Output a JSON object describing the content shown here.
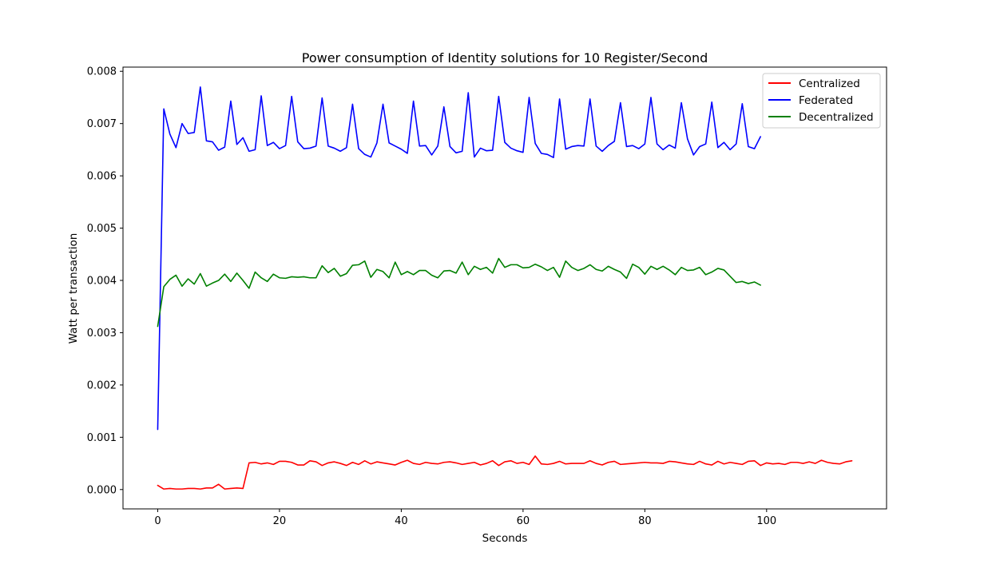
{
  "chart_data": {
    "type": "line",
    "title": "Power consumption of Identity solutions for 10 Register/Second",
    "xlabel": "Seconds",
    "ylabel": "Watt per transaction",
    "xlim": [
      -5.7,
      119.7
    ],
    "ylim": [
      -0.00037,
      0.00808
    ],
    "xticks": [
      0,
      20,
      40,
      60,
      80,
      100
    ],
    "xtick_labels": [
      "0",
      "20",
      "40",
      "60",
      "80",
      "100"
    ],
    "yticks": [
      0,
      0.001,
      0.002,
      0.003,
      0.004,
      0.005,
      0.006,
      0.007,
      0.008
    ],
    "ytick_labels": [
      "0.000",
      "0.001",
      "0.002",
      "0.003",
      "0.004",
      "0.005",
      "0.006",
      "0.007",
      "0.008"
    ],
    "grid": false,
    "legend_position": "top-right",
    "series": [
      {
        "name": "Centralized",
        "color": "#ff0000",
        "x_start": 0,
        "values": [
          8e-05,
          1e-05,
          2e-05,
          1e-05,
          1e-05,
          2e-05,
          2e-05,
          1e-05,
          3e-05,
          3e-05,
          0.0001,
          1e-05,
          2e-05,
          3e-05,
          2e-05,
          0.00051,
          0.00052,
          0.00049,
          0.00051,
          0.00048,
          0.00054,
          0.00054,
          0.00052,
          0.00047,
          0.00047,
          0.00055,
          0.00053,
          0.00046,
          0.00051,
          0.00053,
          0.0005,
          0.00046,
          0.00052,
          0.00048,
          0.00055,
          0.00049,
          0.00053,
          0.00051,
          0.00049,
          0.00047,
          0.00052,
          0.00056,
          0.0005,
          0.00048,
          0.00052,
          0.0005,
          0.00049,
          0.00052,
          0.00053,
          0.00051,
          0.00048,
          0.0005,
          0.00052,
          0.00047,
          0.0005,
          0.00055,
          0.00046,
          0.00053,
          0.00055,
          0.0005,
          0.00052,
          0.00048,
          0.00064,
          0.00049,
          0.00048,
          0.0005,
          0.00054,
          0.00049,
          0.0005,
          0.0005,
          0.0005,
          0.00055,
          0.0005,
          0.00047,
          0.00052,
          0.00054,
          0.00048,
          0.00049,
          0.0005,
          0.00051,
          0.00052,
          0.00051,
          0.00051,
          0.0005,
          0.00054,
          0.00053,
          0.00051,
          0.00049,
          0.00048,
          0.00054,
          0.00049,
          0.00047,
          0.00054,
          0.00049,
          0.00052,
          0.0005,
          0.00048,
          0.00054,
          0.00055,
          0.00046,
          0.00051,
          0.00049,
          0.0005,
          0.00048,
          0.00052,
          0.00052,
          0.0005,
          0.00053,
          0.0005,
          0.00056,
          0.00052,
          0.0005,
          0.00049,
          0.00053,
          0.00055
        ]
      },
      {
        "name": "Federated",
        "color": "#0000ff",
        "x_start": 0,
        "values": [
          0.00115,
          0.00728,
          0.0068,
          0.00654,
          0.007,
          0.00681,
          0.00683,
          0.0077,
          0.00667,
          0.00665,
          0.00649,
          0.00655,
          0.00743,
          0.0066,
          0.00673,
          0.00647,
          0.0065,
          0.00753,
          0.00658,
          0.00664,
          0.00652,
          0.00658,
          0.00752,
          0.00665,
          0.00652,
          0.00653,
          0.00657,
          0.00749,
          0.00657,
          0.00653,
          0.00647,
          0.00654,
          0.00737,
          0.00652,
          0.00641,
          0.00636,
          0.00663,
          0.00737,
          0.00663,
          0.00657,
          0.00651,
          0.00643,
          0.00743,
          0.00657,
          0.00658,
          0.0064,
          0.00657,
          0.00732,
          0.00656,
          0.00644,
          0.00647,
          0.00759,
          0.00636,
          0.00653,
          0.00648,
          0.00649,
          0.00752,
          0.00664,
          0.00653,
          0.00648,
          0.00645,
          0.0075,
          0.00662,
          0.00643,
          0.00641,
          0.00635,
          0.00747,
          0.00651,
          0.00656,
          0.00658,
          0.00657,
          0.00747,
          0.00657,
          0.00647,
          0.00658,
          0.00666,
          0.0074,
          0.00656,
          0.00658,
          0.00652,
          0.00661,
          0.0075,
          0.00661,
          0.0065,
          0.00659,
          0.00653,
          0.0074,
          0.00671,
          0.0064,
          0.00656,
          0.00661,
          0.00741,
          0.00654,
          0.00664,
          0.0065,
          0.00661,
          0.00738,
          0.00656,
          0.00652,
          0.00675
        ]
      },
      {
        "name": "Decentralized",
        "color": "#008000",
        "x_start": 0,
        "values": [
          0.00312,
          0.00388,
          0.00402,
          0.0041,
          0.00389,
          0.00403,
          0.00393,
          0.00413,
          0.00389,
          0.00395,
          0.004,
          0.00412,
          0.00398,
          0.00414,
          0.004,
          0.00385,
          0.00416,
          0.00405,
          0.00398,
          0.00412,
          0.00405,
          0.00404,
          0.00407,
          0.00406,
          0.00407,
          0.00405,
          0.00405,
          0.00428,
          0.00415,
          0.00423,
          0.00408,
          0.00413,
          0.00429,
          0.0043,
          0.00437,
          0.00406,
          0.00421,
          0.00417,
          0.00405,
          0.00435,
          0.00411,
          0.00417,
          0.00411,
          0.00419,
          0.00419,
          0.0041,
          0.00405,
          0.00418,
          0.00419,
          0.00414,
          0.00435,
          0.00411,
          0.00427,
          0.00421,
          0.00425,
          0.00414,
          0.00442,
          0.00425,
          0.0043,
          0.0043,
          0.00424,
          0.00425,
          0.00431,
          0.00426,
          0.00419,
          0.00425,
          0.00406,
          0.00437,
          0.00425,
          0.00419,
          0.00423,
          0.0043,
          0.00421,
          0.00418,
          0.00427,
          0.00421,
          0.00416,
          0.00404,
          0.00431,
          0.00425,
          0.00412,
          0.00427,
          0.00421,
          0.00427,
          0.0042,
          0.00411,
          0.00425,
          0.00419,
          0.0042,
          0.00425,
          0.00411,
          0.00416,
          0.00423,
          0.0042,
          0.00408,
          0.00396,
          0.00398,
          0.00394,
          0.00397,
          0.00391
        ]
      }
    ]
  }
}
